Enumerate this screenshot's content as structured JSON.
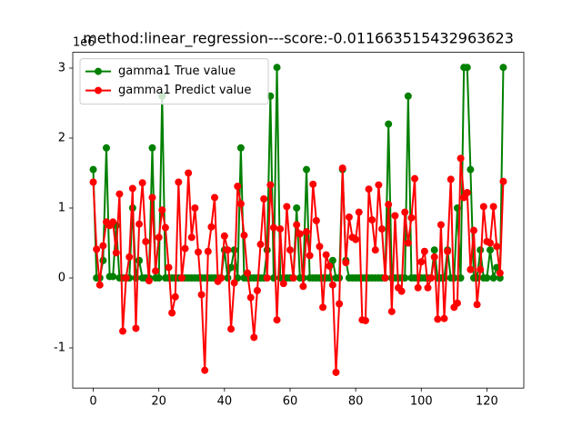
{
  "chart_data": {
    "type": "line",
    "title": "method:linear_regression---score:-0.011663515432963623",
    "y_offset_label": "1e6",
    "x": [
      0,
      1,
      2,
      3,
      4,
      5,
      6,
      7,
      8,
      9,
      10,
      11,
      12,
      13,
      14,
      15,
      16,
      17,
      18,
      19,
      20,
      21,
      22,
      23,
      24,
      25,
      26,
      27,
      28,
      29,
      30,
      31,
      32,
      33,
      34,
      35,
      36,
      37,
      38,
      39,
      40,
      41,
      42,
      43,
      44,
      45,
      46,
      47,
      48,
      49,
      50,
      51,
      52,
      53,
      54,
      55,
      56,
      57,
      58,
      59,
      60,
      61,
      62,
      63,
      64,
      65,
      66,
      67,
      68,
      69,
      70,
      71,
      72,
      73,
      74,
      75,
      76,
      77,
      78,
      79,
      80,
      81,
      82,
      83,
      84,
      85,
      86,
      87,
      88,
      89,
      90,
      91,
      92,
      93,
      94,
      95,
      96,
      97,
      98,
      99,
      100,
      101,
      102,
      103,
      104,
      105,
      106,
      107,
      108,
      109,
      110,
      111,
      112,
      113,
      114,
      115,
      116,
      117,
      118,
      119,
      120,
      121,
      122,
      123,
      124,
      125
    ],
    "series": [
      {
        "name": "gamma1 True value",
        "color": "#008000",
        "values": [
          1.55,
          0,
          0,
          0.25,
          1.86,
          0.02,
          0.02,
          0.75,
          0,
          0,
          0,
          0,
          1.0,
          0,
          0.25,
          0,
          0,
          0,
          1.86,
          0,
          0,
          2.6,
          0,
          0,
          0,
          0,
          0,
          0,
          0,
          0,
          0,
          0,
          0,
          0,
          0,
          0,
          0,
          0,
          0,
          0,
          0.4,
          0,
          0.15,
          0.4,
          0,
          1.86,
          0,
          0,
          0,
          0,
          0,
          0,
          0,
          0.4,
          2.6,
          0,
          3.01,
          0,
          0,
          0,
          0,
          0,
          1.0,
          0,
          0,
          1.55,
          0,
          0,
          0,
          0,
          0,
          0,
          0,
          0.25,
          0,
          0,
          1.55,
          0.25,
          0,
          0,
          0,
          0,
          0,
          0,
          0,
          0,
          0,
          0,
          0,
          0,
          2.2,
          0,
          0,
          0,
          0,
          0,
          2.6,
          0,
          0,
          0,
          0,
          0,
          0,
          0,
          0.4,
          0,
          0,
          0,
          0.4,
          0,
          0,
          1.0,
          0,
          3.01,
          3.01,
          1.55,
          0,
          0,
          0.4,
          0,
          0,
          0.4,
          0,
          0.15,
          0,
          3.01
        ]
      },
      {
        "name": "gamma1 Predict value",
        "color": "#ff0000",
        "values": [
          1.37,
          0.41,
          -0.1,
          0.46,
          0.8,
          0.75,
          0.8,
          0.36,
          1.2,
          -0.76,
          0.0,
          0.3,
          1.28,
          -0.72,
          0.77,
          1.36,
          0.52,
          -0.04,
          1.15,
          0.1,
          0.58,
          0.97,
          0.72,
          0.15,
          -0.5,
          -0.27,
          1.37,
          0.0,
          0.42,
          1.5,
          0.58,
          1.0,
          0.37,
          -0.24,
          -1.32,
          0.38,
          0.73,
          1.15,
          -0.05,
          0.0,
          0.6,
          0.4,
          -0.73,
          -0.07,
          1.31,
          1.06,
          0.61,
          0.07,
          -0.28,
          -0.85,
          -0.18,
          0.48,
          1.13,
          0.0,
          1.33,
          0.72,
          -0.6,
          0.7,
          -0.08,
          1.02,
          0.4,
          0.0,
          0.76,
          0.63,
          -0.12,
          0.66,
          0.32,
          1.34,
          0.82,
          0.45,
          -0.42,
          0.33,
          0.17,
          -0.1,
          -1.35,
          -0.37,
          1.57,
          0.22,
          0.87,
          0.58,
          0.55,
          0.94,
          -0.6,
          -0.61,
          1.27,
          0.83,
          0.4,
          1.33,
          0.7,
          0.0,
          1.05,
          -0.48,
          0.89,
          -0.14,
          -0.19,
          0.94,
          0.5,
          0.86,
          1.42,
          -0.14,
          0.23,
          0.38,
          -0.14,
          0.0,
          0.3,
          -0.59,
          0.76,
          -0.58,
          0.38,
          1.41,
          -0.42,
          -0.36,
          1.71,
          1.15,
          1.22,
          0.12,
          0.68,
          -0.38,
          0.12,
          1.02,
          0.52,
          0.5,
          1.02,
          0.45,
          0.07,
          1.38
        ]
      }
    ],
    "xlim": [
      -6.25,
      131.25
    ],
    "xticks": [
      0,
      20,
      40,
      60,
      80,
      100,
      120
    ],
    "ylim": [
      -1.574,
      3.226
    ],
    "yticks": [
      -1,
      0,
      1,
      2,
      3
    ],
    "legend": "upper left"
  }
}
